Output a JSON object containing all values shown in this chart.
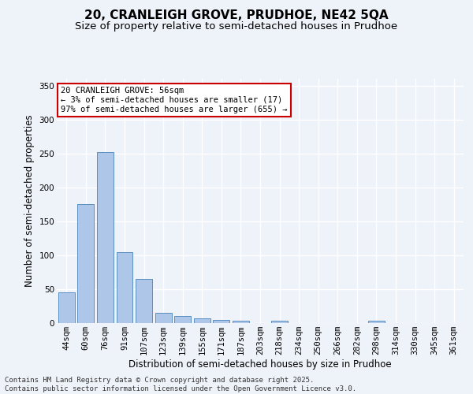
{
  "title_line1": "20, CRANLEIGH GROVE, PRUDHOE, NE42 5QA",
  "title_line2": "Size of property relative to semi-detached houses in Prudhoe",
  "xlabel": "Distribution of semi-detached houses by size in Prudhoe",
  "ylabel": "Number of semi-detached properties",
  "categories": [
    "44sqm",
    "60sqm",
    "76sqm",
    "91sqm",
    "107sqm",
    "123sqm",
    "139sqm",
    "155sqm",
    "171sqm",
    "187sqm",
    "203sqm",
    "218sqm",
    "234sqm",
    "250sqm",
    "266sqm",
    "282sqm",
    "298sqm",
    "314sqm",
    "330sqm",
    "345sqm",
    "361sqm"
  ],
  "values": [
    45,
    175,
    252,
    105,
    65,
    15,
    10,
    7,
    5,
    3,
    0,
    3,
    0,
    0,
    0,
    0,
    3,
    0,
    0,
    0,
    0
  ],
  "bar_color": "#aec6e8",
  "bar_edge_color": "#5a8fc0",
  "annotation_text": "20 CRANLEIGH GROVE: 56sqm\n← 3% of semi-detached houses are smaller (17)\n97% of semi-detached houses are larger (655) →",
  "annotation_box_color": "#ffffff",
  "annotation_box_edge_color": "#cc0000",
  "ylim": [
    0,
    360
  ],
  "yticks": [
    0,
    50,
    100,
    150,
    200,
    250,
    300,
    350
  ],
  "background_color": "#eef2f9",
  "grid_color": "#ffffff",
  "footer_text": "Contains HM Land Registry data © Crown copyright and database right 2025.\nContains public sector information licensed under the Open Government Licence v3.0.",
  "title_fontsize": 11,
  "subtitle_fontsize": 9.5,
  "axis_label_fontsize": 8.5,
  "tick_fontsize": 7.5,
  "annotation_fontsize": 7.5,
  "footer_fontsize": 6.5
}
